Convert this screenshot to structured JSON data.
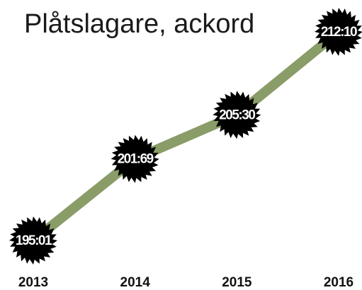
{
  "chart_data": {
    "type": "line",
    "title": "Plåtslagare, ackord",
    "categories": [
      "2013",
      "2014",
      "2015",
      "2016"
    ],
    "values": [
      195.01,
      201.69,
      205.3,
      212.1
    ],
    "value_labels": [
      "195:01",
      "201:69",
      "205:30",
      "212:10"
    ],
    "color": "#8a9c68"
  }
}
